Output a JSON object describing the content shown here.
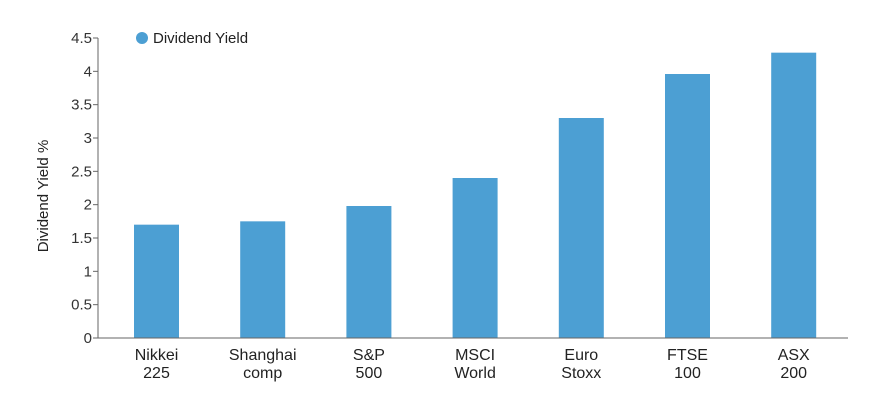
{
  "chart_data": {
    "type": "bar",
    "title": "",
    "xlabel": "",
    "ylabel": "Dividend Yield %",
    "ylim": [
      0,
      4.5
    ],
    "yticks": [
      "0",
      "0.5",
      "1",
      "1.5",
      "2",
      "2.5",
      "3",
      "3.5",
      "4",
      "4.5"
    ],
    "grid": false,
    "legend": {
      "placement": "top-left"
    },
    "categories": [
      [
        "Nikkei",
        "225"
      ],
      [
        "Shanghai",
        "comp"
      ],
      [
        "S&P",
        "500"
      ],
      [
        "MSCI",
        "World"
      ],
      [
        "Euro",
        "Stoxx"
      ],
      [
        "FTSE",
        "100"
      ],
      [
        "ASX",
        "200"
      ]
    ],
    "series": [
      {
        "name": "Dividend Yield",
        "color": "#4c9fd3",
        "values": [
          1.7,
          1.75,
          1.98,
          2.4,
          3.3,
          3.96,
          4.28
        ]
      }
    ]
  }
}
